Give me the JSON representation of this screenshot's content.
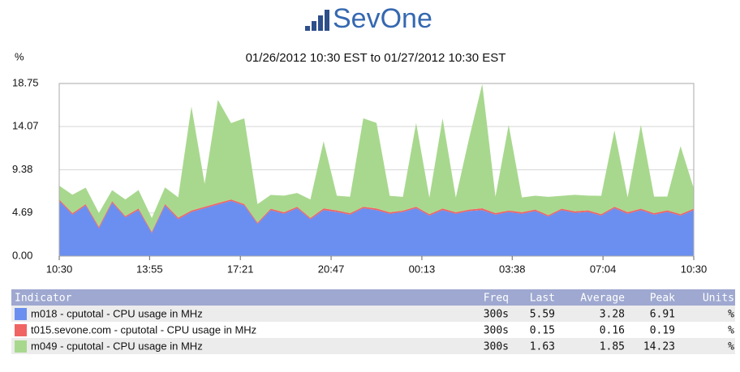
{
  "header": {
    "logo": "SevOne"
  },
  "chart_data": {
    "type": "stacked-area",
    "title": "01/26/2012 10:30 EST to 01/27/2012 10:30 EST",
    "ylabel": "%",
    "x": [
      0,
      30,
      60,
      90,
      120,
      150,
      180,
      210,
      240,
      270,
      300,
      330,
      360,
      390,
      420,
      450,
      480,
      510,
      540,
      570,
      600,
      630,
      660,
      690,
      720,
      750,
      780,
      810,
      840,
      870,
      900,
      930,
      960,
      990,
      1020,
      1050,
      1080,
      1110,
      1140,
      1170,
      1200,
      1230,
      1260,
      1290,
      1320,
      1350,
      1380,
      1410,
      1440
    ],
    "xlim": [
      0,
      1440
    ],
    "xticks": [
      {
        "value": 0,
        "label": "10:30"
      },
      {
        "value": 205,
        "label": "13:55"
      },
      {
        "value": 411,
        "label": "17:21"
      },
      {
        "value": 617,
        "label": "20:47"
      },
      {
        "value": 823,
        "label": "00:13"
      },
      {
        "value": 1028,
        "label": "03:38"
      },
      {
        "value": 1234,
        "label": "07:04"
      },
      {
        "value": 1440,
        "label": "10:30"
      }
    ],
    "ylim": [
      0,
      18.75
    ],
    "yticks": [
      {
        "value": 0,
        "label": "0.00"
      },
      4.69,
      9.38,
      14.07,
      18.75
    ],
    "grid": true,
    "series": [
      {
        "name": "m018 - cputotal - CPU usage in MHz",
        "color": "#6b8ff0",
        "values": [
          6.0,
          4.5,
          5.5,
          3.0,
          5.8,
          4.2,
          5.0,
          2.5,
          5.5,
          4.0,
          4.8,
          5.2,
          5.6,
          6.0,
          5.5,
          3.5,
          5.0,
          4.6,
          5.2,
          4.0,
          5.0,
          4.8,
          4.5,
          5.2,
          5.0,
          4.6,
          4.8,
          5.2,
          4.4,
          5.0,
          4.6,
          4.9,
          5.0,
          4.5,
          4.8,
          4.6,
          4.9,
          4.3,
          5.0,
          4.7,
          4.8,
          4.4,
          5.2,
          4.6,
          5.0,
          4.5,
          4.8,
          4.4,
          5.0
        ]
      },
      {
        "name": "t015.sevone.com - cputotal - CPU usage in MHz",
        "color": "#f06464",
        "values": [
          0.15,
          0.17,
          0.14,
          0.19,
          0.16,
          0.15,
          0.17,
          0.14,
          0.16,
          0.18,
          0.15,
          0.16,
          0.17,
          0.15,
          0.16,
          0.14,
          0.15,
          0.17,
          0.16,
          0.15,
          0.18,
          0.16,
          0.15,
          0.16,
          0.17,
          0.15,
          0.14,
          0.16,
          0.15,
          0.17,
          0.16,
          0.15,
          0.19,
          0.16,
          0.15,
          0.17,
          0.16,
          0.14,
          0.15,
          0.16,
          0.17,
          0.15,
          0.16,
          0.18,
          0.15,
          0.16,
          0.17,
          0.15,
          0.16
        ]
      },
      {
        "name": "m049 - cputotal - CPU usage in MHz",
        "color": "#a8d88e",
        "values": [
          1.5,
          2.0,
          1.8,
          1.5,
          1.2,
          1.8,
          2.0,
          1.5,
          1.8,
          2.2,
          11.3,
          2.5,
          11.2,
          8.3,
          9.3,
          2.0,
          1.5,
          1.8,
          1.5,
          2.0,
          7.3,
          1.6,
          1.8,
          9.6,
          9.3,
          1.8,
          1.5,
          9.1,
          1.8,
          9.8,
          1.6,
          7.7,
          13.5,
          1.8,
          9.3,
          1.6,
          1.5,
          2.0,
          1.4,
          1.8,
          1.6,
          2.0,
          8.3,
          1.6,
          9.1,
          1.8,
          1.5,
          7.4,
          2.2
        ]
      }
    ]
  },
  "table": {
    "columns": [
      "Indicator",
      "Freq",
      "Last",
      "Average",
      "Peak",
      "Units"
    ],
    "rows": [
      {
        "freq": "300s",
        "last": 5.59,
        "average": 3.28,
        "peak": 6.91,
        "units": "%"
      },
      {
        "freq": "300s",
        "last": 0.15,
        "average": 0.16,
        "peak": 0.19,
        "units": "%"
      },
      {
        "freq": "300s",
        "last": 1.63,
        "average": 1.85,
        "peak": 14.23,
        "units": "%"
      }
    ]
  }
}
